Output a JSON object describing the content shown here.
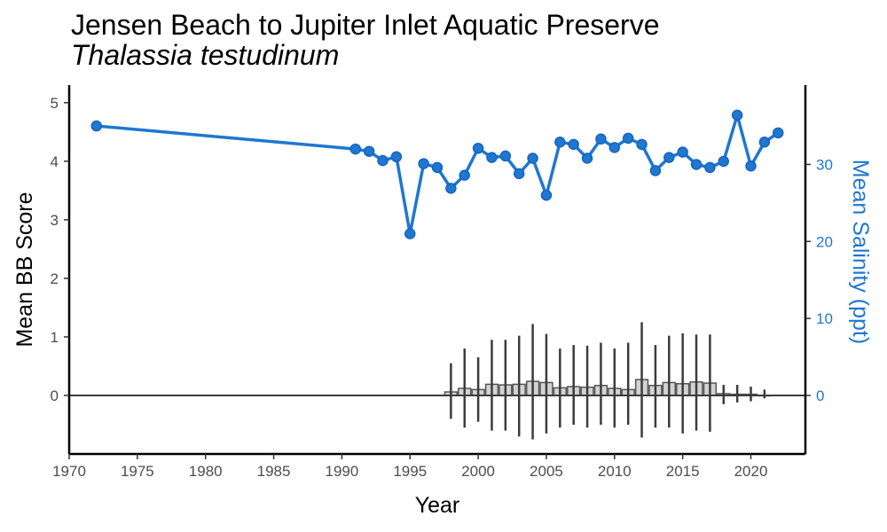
{
  "chart_data": {
    "type": "bar+line",
    "title": "Jensen Beach to Jupiter Inlet Aquatic Preserve",
    "subtitle": "Thalassia testudinum",
    "xlabel": "Year",
    "ylabel_left": "Mean BB Score",
    "ylabel_right": "Mean Salinity (ppt)",
    "xlim": [
      1970,
      2024
    ],
    "ylim_left": [
      -1,
      5.3
    ],
    "ylim_right": [
      -7.6,
      40.3
    ],
    "x_ticks": [
      1970,
      1975,
      1980,
      1985,
      1990,
      1995,
      2000,
      2005,
      2010,
      2015,
      2020
    ],
    "y_ticks_left": [
      0,
      1,
      2,
      3,
      4,
      5
    ],
    "y_ticks_right": [
      0,
      10,
      20,
      30
    ],
    "grid": false,
    "colors": {
      "salinity": "#1f77d0",
      "salinity_point": "#1565c0",
      "bar_fill": "#d3d3d3",
      "bar_stroke": "#555555",
      "errorbar": "#3c3c3c",
      "zero_line": "#3c3c3c",
      "right_axis": "#1f77d0"
    },
    "bb_series": {
      "name": "",
      "x": [
        1998,
        1999,
        2000,
        2001,
        2002,
        2003,
        2004,
        2005,
        2006,
        2007,
        2008,
        2009,
        2010,
        2011,
        2012,
        2013,
        2014,
        2015,
        2016,
        2017,
        2018,
        2019,
        2020,
        2021
      ],
      "mean": [
        0.06,
        0.12,
        0.1,
        0.19,
        0.18,
        0.19,
        0.24,
        0.22,
        0.13,
        0.15,
        0.14,
        0.17,
        0.12,
        0.1,
        0.27,
        0.17,
        0.22,
        0.2,
        0.23,
        0.21,
        0.03,
        0.02,
        0.02,
        0.0
      ],
      "lo": [
        -0.4,
        -0.55,
        -0.45,
        -0.6,
        -0.6,
        -0.7,
        -0.75,
        -0.65,
        -0.55,
        -0.5,
        -0.55,
        -0.5,
        -0.55,
        -0.5,
        -0.72,
        -0.55,
        -0.55,
        -0.65,
        -0.6,
        -0.62,
        -0.15,
        -0.12,
        -0.1,
        -0.05
      ],
      "hi": [
        0.55,
        0.8,
        0.65,
        0.95,
        0.95,
        1.02,
        1.22,
        1.05,
        0.8,
        0.86,
        0.85,
        0.9,
        0.8,
        0.9,
        1.25,
        0.86,
        1.02,
        1.06,
        1.04,
        1.04,
        0.18,
        0.18,
        0.15,
        0.1
      ]
    },
    "salinity_series": {
      "name": "",
      "x": [
        1972,
        1991,
        1992,
        1993,
        1994,
        1995,
        1996,
        1997,
        1998,
        1999,
        2000,
        2001,
        2002,
        2003,
        2004,
        2005,
        2006,
        2007,
        2008,
        2009,
        2010,
        2011,
        2012,
        2013,
        2014,
        2015,
        2016,
        2017,
        2018,
        2019,
        2020,
        2021,
        2022
      ],
      "y": [
        35.0,
        32.0,
        31.7,
        30.5,
        31.0,
        21.0,
        30.1,
        29.6,
        26.9,
        28.6,
        32.1,
        30.9,
        31.1,
        28.8,
        30.8,
        26.0,
        32.9,
        32.6,
        30.8,
        33.3,
        32.2,
        33.4,
        32.6,
        29.2,
        30.9,
        31.6,
        30.0,
        29.6,
        30.4,
        36.4,
        29.8,
        32.9,
        34.1
      ]
    }
  }
}
